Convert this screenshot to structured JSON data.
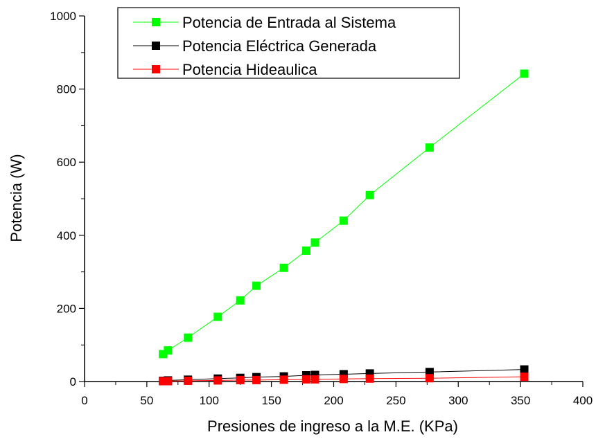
{
  "chart_data": {
    "type": "line",
    "title": "",
    "xlabel": "Presiones de ingreso a la M.E. (KPa)",
    "ylabel": "Potencia (W)",
    "xlim": [
      0,
      400
    ],
    "ylim": [
      0,
      1000
    ],
    "x_ticks": [
      "0",
      "50",
      "100",
      "150",
      "200",
      "250",
      "300",
      "350",
      "400"
    ],
    "y_ticks": [
      "0",
      "200",
      "400",
      "600",
      "800",
      "1000"
    ],
    "grid": false,
    "legend_position": "top-left",
    "x": [
      63,
      67,
      83,
      107,
      125,
      138,
      160,
      178,
      185,
      208,
      229,
      277,
      353
    ],
    "series": [
      {
        "name": "Potencia de Entrada al Sistema",
        "color": "#00ff00",
        "marker": "square",
        "values": [
          75,
          85,
          120,
          177,
          222,
          262,
          311,
          358,
          380,
          440,
          510,
          640,
          842
        ]
      },
      {
        "name": "Potencia Eléctrica Generada",
        "color": "#000000",
        "marker": "square",
        "values": [
          2,
          3,
          5,
          8,
          10,
          12,
          14,
          17,
          18,
          20,
          22,
          26,
          33
        ]
      },
      {
        "name": "Potencia Hideaulica",
        "color": "#ff0000",
        "marker": "square",
        "values": [
          1,
          1,
          2,
          3,
          4,
          4,
          5,
          6,
          6,
          7,
          8,
          9,
          13
        ]
      }
    ]
  }
}
